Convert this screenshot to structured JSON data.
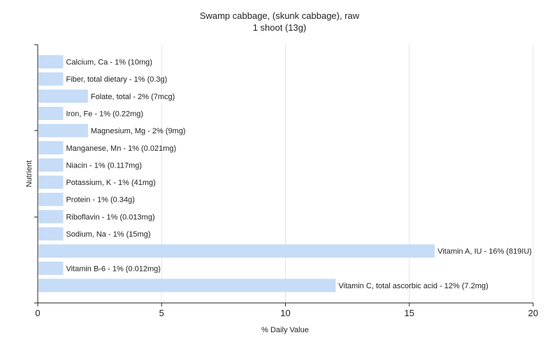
{
  "chart_data": {
    "type": "bar",
    "orientation": "horizontal",
    "title": "Swamp cabbage, (skunk cabbage), raw",
    "subtitle": "1 shoot (13g)",
    "xlabel": "% Daily Value",
    "ylabel": "Nutrient",
    "xlim": [
      0,
      20
    ],
    "xticks": [
      0,
      5,
      10,
      15,
      20
    ],
    "grid": true,
    "legend": "none",
    "bar_color": "#c6dcf7",
    "categories": [
      "Calcium, Ca",
      "Fiber, total dietary",
      "Folate, total",
      "Iron, Fe",
      "Magnesium, Mg",
      "Manganese, Mn",
      "Niacin",
      "Potassium, K",
      "Protein",
      "Riboflavin",
      "Sodium, Na",
      "Vitamin A, IU",
      "Vitamin B-6",
      "Vitamin C, total ascorbic acid"
    ],
    "values": [
      1,
      1,
      2,
      1,
      2,
      1,
      1,
      1,
      1,
      1,
      1,
      16,
      1,
      12
    ],
    "labels": [
      "Calcium, Ca - 1% (10mg)",
      "Fiber, total dietary - 1% (0.3g)",
      "Folate, total - 2% (7mcg)",
      "Iron, Fe - 1% (0.22mg)",
      "Magnesium, Mg - 2% (9mg)",
      "Manganese, Mn - 1% (0.021mg)",
      "Niacin - 1% (0.117mg)",
      "Potassium, K - 1% (41mg)",
      "Protein - 1% (0.34g)",
      "Riboflavin - 1% (0.013mg)",
      "Sodium, Na - 1% (15mg)",
      "Vitamin A, IU - 16% (819IU)",
      "Vitamin B-6 - 1% (0.012mg)",
      "Vitamin C, total ascorbic acid - 12% (7.2mg)"
    ]
  }
}
